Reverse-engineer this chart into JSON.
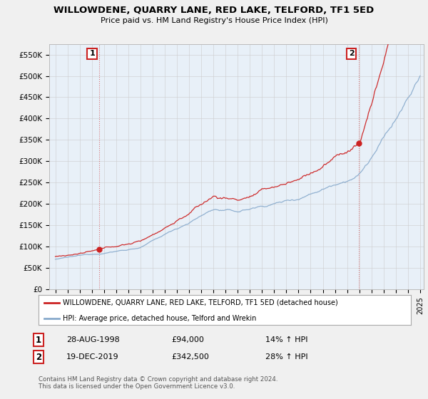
{
  "title": "WILLOWDENE, QUARRY LANE, RED LAKE, TELFORD, TF1 5ED",
  "subtitle": "Price paid vs. HM Land Registry's House Price Index (HPI)",
  "background_color": "#f0f0f0",
  "plot_background": "#e8f0f8",
  "sale1": {
    "date": "28-AUG-1998",
    "price": 94000,
    "hpi_pct": "14% ↑ HPI",
    "label": "1"
  },
  "sale2": {
    "date": "19-DEC-2019",
    "price": 342500,
    "hpi_pct": "28% ↑ HPI",
    "label": "2"
  },
  "legend_line1": "WILLOWDENE, QUARRY LANE, RED LAKE, TELFORD, TF1 5ED (detached house)",
  "legend_line2": "HPI: Average price, detached house, Telford and Wrekin",
  "footnote1": "Contains HM Land Registry data © Crown copyright and database right 2024.",
  "footnote2": "This data is licensed under the Open Government Licence v3.0.",
  "red_color": "#cc2222",
  "blue_color": "#88aacc",
  "ylim": [
    0,
    575000
  ],
  "yticks": [
    0,
    50000,
    100000,
    150000,
    200000,
    250000,
    300000,
    350000,
    400000,
    450000,
    500000,
    550000
  ],
  "xstart_year": 1995,
  "xend_year": 2025
}
